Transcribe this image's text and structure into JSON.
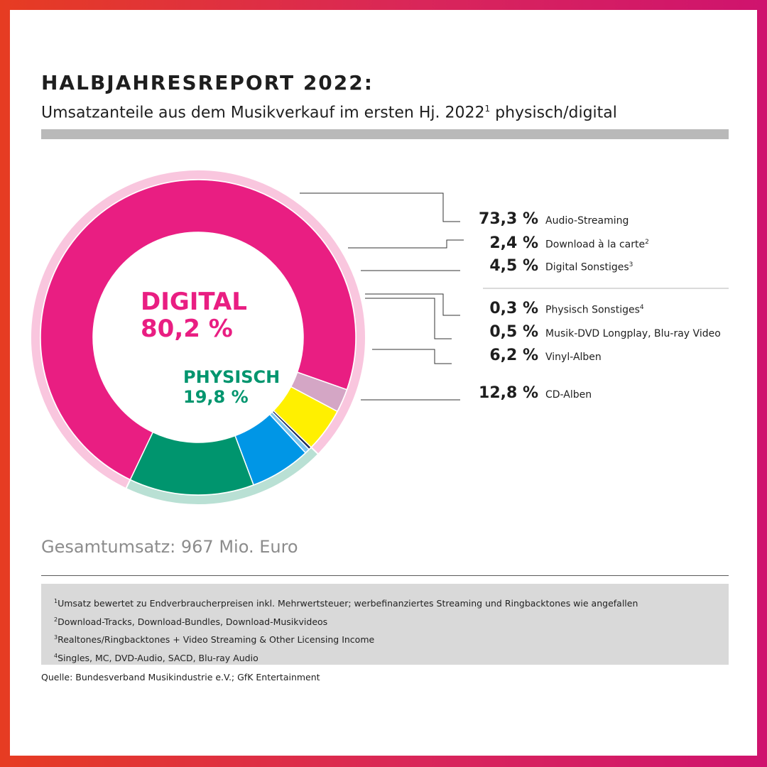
{
  "header": {
    "title": "HALBJAHRESREPORT 2022:",
    "subtitle": "Umsatzanteile aus dem Musikverkauf im ersten Hj. 2022",
    "subtitle_sup": "1",
    "subtitle_suffix": " physisch/digital"
  },
  "chart_data": {
    "type": "pie",
    "title": "HALBJAHRESREPORT 2022:",
    "subtitle": "Umsatzanteile aus dem Musikverkauf im ersten Hj. 2022¹ physisch/digital",
    "unit": "%",
    "groups": [
      {
        "name": "DIGITAL",
        "value": 80.2,
        "value_label": "80,2 %",
        "color": "#e91e82",
        "ring_color": "#f9c6de"
      },
      {
        "name": "PHYSISCH",
        "value": 19.8,
        "value_label": "19,8 %",
        "color": "#00956e",
        "ring_color": "#b9e0d4"
      }
    ],
    "slices": [
      {
        "label": "Audio-Streaming",
        "sup": "",
        "value": 73.3,
        "value_label": "73,3 %",
        "group": "DIGITAL",
        "color": "#e91e82"
      },
      {
        "label": "Download à la carte",
        "sup": "2",
        "value": 2.4,
        "value_label": "2,4 %",
        "group": "DIGITAL",
        "color": "#d4a6c5"
      },
      {
        "label": "Digital Sonstiges",
        "sup": "3",
        "value": 4.5,
        "value_label": "4,5 %",
        "group": "DIGITAL",
        "color": "#fff000"
      },
      {
        "label": "Physisch Sonstiges",
        "sup": "4",
        "value": 0.3,
        "value_label": "0,3 %",
        "group": "PHYSISCH",
        "color": "#1b2a5c"
      },
      {
        "label": "Musik-DVD Longplay, Blu-ray Video",
        "sup": "",
        "value": 0.5,
        "value_label": "0,5 %",
        "group": "PHYSISCH",
        "color": "#7dc6f0"
      },
      {
        "label": "Vinyl-Alben",
        "sup": "",
        "value": 6.2,
        "value_label": "6,2 %",
        "group": "PHYSISCH",
        "color": "#0096e6"
      },
      {
        "label": "CD-Alben",
        "sup": "",
        "value": 12.8,
        "value_label": "12,8 %",
        "group": "PHYSISCH",
        "color": "#00956e"
      }
    ]
  },
  "summary": {
    "total": "Gesamtumsatz: 967 Mio. Euro"
  },
  "footnotes": [
    {
      "sup": "1",
      "text": "Umsatz bewertet zu Endverbraucherpreisen inkl. Mehrwertsteuer; werbefinanziertes Streaming und Ringbacktones wie angefallen"
    },
    {
      "sup": "2",
      "text": "Download-Tracks, Download-Bundles, Download-Musikvideos"
    },
    {
      "sup": "3",
      "text": "Realtones/Ringbacktones + Video Streaming & Other Licensing Income"
    },
    {
      "sup": "4",
      "text": "Singles, MC, DVD-Audio, SACD, Blu-ray Audio"
    }
  ],
  "source": "Quelle: Bundesverband Musikindustrie e.V.; GfK Entertainment"
}
